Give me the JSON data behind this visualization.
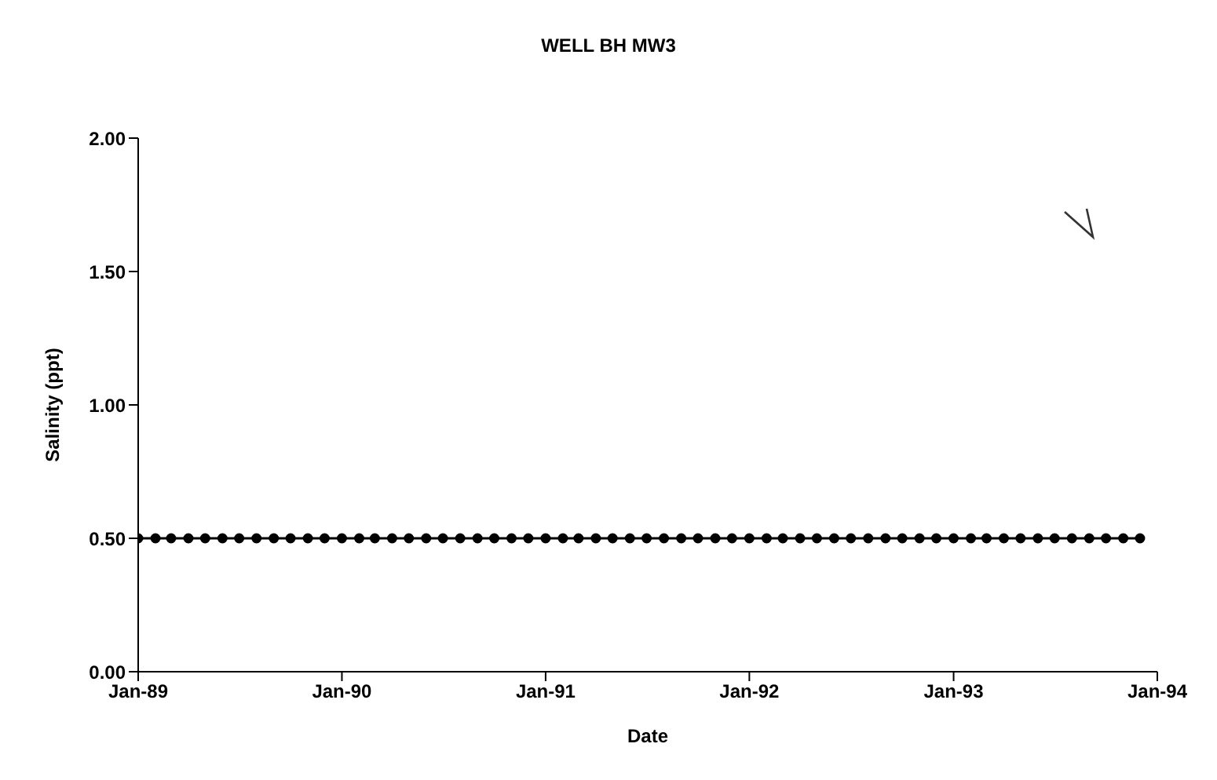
{
  "chart_data": {
    "type": "line",
    "title": "WELL BH MW3",
    "xlabel": "Date",
    "ylabel": "Salinity (ppt)",
    "x": [
      "1989-01",
      "1989-02",
      "1989-03",
      "1989-04",
      "1989-05",
      "1989-06",
      "1989-07",
      "1989-08",
      "1989-09",
      "1989-10",
      "1989-11",
      "1989-12",
      "1990-01",
      "1990-02",
      "1990-03",
      "1990-04",
      "1990-05",
      "1990-06",
      "1990-07",
      "1990-08",
      "1990-09",
      "1990-10",
      "1990-11",
      "1990-12",
      "1991-01",
      "1991-02",
      "1991-03",
      "1991-04",
      "1991-05",
      "1991-06",
      "1991-07",
      "1991-08",
      "1991-09",
      "1991-10",
      "1991-11",
      "1991-12",
      "1992-01",
      "1992-02",
      "1992-03",
      "1992-04",
      "1992-05",
      "1992-06",
      "1992-07",
      "1992-08",
      "1992-09",
      "1992-10",
      "1992-11",
      "1992-12",
      "1993-01",
      "1993-02",
      "1993-03",
      "1993-04",
      "1993-05",
      "1993-06",
      "1993-07",
      "1993-08",
      "1993-09",
      "1993-10",
      "1993-11",
      "1993-12"
    ],
    "values": [
      0.5,
      0.5,
      0.5,
      0.5,
      0.5,
      0.5,
      0.5,
      0.5,
      0.5,
      0.5,
      0.5,
      0.5,
      0.5,
      0.5,
      0.5,
      0.5,
      0.5,
      0.5,
      0.5,
      0.5,
      0.5,
      0.5,
      0.5,
      0.5,
      0.5,
      0.5,
      0.5,
      0.5,
      0.5,
      0.5,
      0.5,
      0.5,
      0.5,
      0.5,
      0.5,
      0.5,
      0.5,
      0.5,
      0.5,
      0.5,
      0.5,
      0.5,
      0.5,
      0.5,
      0.5,
      0.5,
      0.5,
      0.5,
      0.5,
      0.5,
      0.5,
      0.5,
      0.5,
      0.5,
      0.5,
      0.5,
      0.5,
      0.5,
      0.5,
      0.5
    ],
    "color": "#000000",
    "marker": "circle",
    "line_style": "solid",
    "xlim": [
      "1989-01",
      "1994-01"
    ],
    "xticks": [
      {
        "value": "1989-01",
        "label": "Jan-89"
      },
      {
        "value": "1990-01",
        "label": "Jan-90"
      },
      {
        "value": "1991-01",
        "label": "Jan-91"
      },
      {
        "value": "1992-01",
        "label": "Jan-92"
      },
      {
        "value": "1993-01",
        "label": "Jan-93"
      },
      {
        "value": "1994-01",
        "label": "Jan-94"
      }
    ],
    "ylim": [
      0,
      2
    ],
    "yticks": [
      {
        "value": 0,
        "label": "0.00"
      },
      {
        "value": 0.5,
        "label": "0.50"
      },
      {
        "value": 1,
        "label": "1.00"
      },
      {
        "value": 1.5,
        "label": "1.50"
      },
      {
        "value": 2,
        "label": "2.00"
      }
    ]
  }
}
